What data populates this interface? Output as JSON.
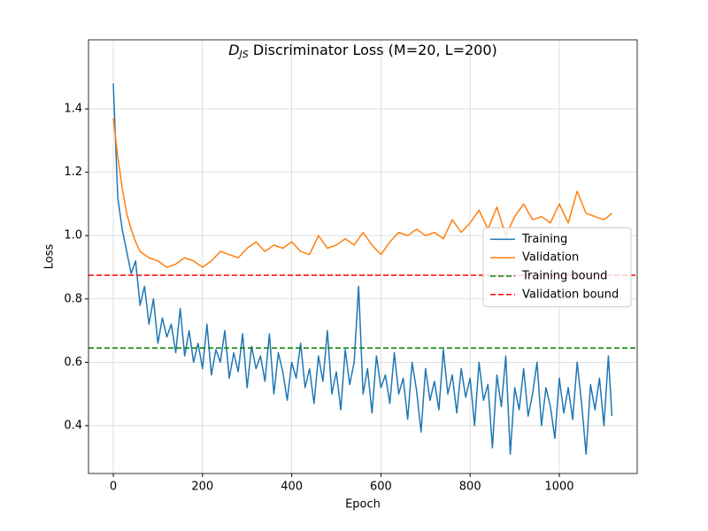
{
  "chart_data": {
    "type": "line",
    "title": {
      "symbol": "D",
      "subscript": "JS",
      "text": " Discriminator Loss (M=20, L=200)"
    },
    "x_label": "Epoch",
    "y_label": "Loss",
    "xlim": [
      -55.6,
      1174.6
    ],
    "ylim": [
      0.249,
      1.618
    ],
    "xticks": [
      0,
      200,
      400,
      600,
      800,
      1000
    ],
    "yticks": [
      0.4,
      0.6,
      0.8,
      {
        "value": 1,
        "label": "1.0"
      },
      1.2,
      1.4
    ],
    "grid": true,
    "legend": "center right",
    "series": [
      {
        "name": "Training",
        "color": "#1f77b4",
        "x": [
          0,
          10,
          20,
          30,
          40,
          50,
          60,
          70,
          80,
          90,
          100,
          110,
          120,
          130,
          140,
          150,
          160,
          170,
          180,
          190,
          200,
          210,
          220,
          230,
          240,
          250,
          260,
          270,
          280,
          290,
          300,
          310,
          320,
          330,
          340,
          350,
          360,
          370,
          380,
          390,
          400,
          410,
          420,
          430,
          440,
          450,
          460,
          470,
          480,
          490,
          500,
          510,
          520,
          530,
          540,
          550,
          560,
          570,
          580,
          590,
          600,
          610,
          620,
          630,
          640,
          650,
          660,
          670,
          680,
          690,
          700,
          710,
          720,
          730,
          740,
          750,
          760,
          770,
          780,
          790,
          800,
          810,
          820,
          830,
          840,
          850,
          860,
          870,
          880,
          890,
          900,
          910,
          920,
          930,
          940,
          950,
          960,
          970,
          980,
          990,
          1000,
          1010,
          1020,
          1030,
          1040,
          1050,
          1060,
          1070,
          1080,
          1090,
          1100,
          1110,
          1118
        ],
        "values": [
          1.48,
          1.12,
          1.02,
          0.95,
          0.88,
          0.92,
          0.78,
          0.84,
          0.72,
          0.8,
          0.66,
          0.74,
          0.68,
          0.72,
          0.63,
          0.77,
          0.62,
          0.7,
          0.6,
          0.66,
          0.58,
          0.72,
          0.56,
          0.64,
          0.6,
          0.7,
          0.55,
          0.63,
          0.57,
          0.69,
          0.52,
          0.65,
          0.58,
          0.62,
          0.54,
          0.69,
          0.5,
          0.63,
          0.57,
          0.48,
          0.6,
          0.55,
          0.66,
          0.52,
          0.58,
          0.47,
          0.62,
          0.54,
          0.7,
          0.5,
          0.57,
          0.45,
          0.64,
          0.53,
          0.6,
          0.84,
          0.5,
          0.58,
          0.44,
          0.62,
          0.52,
          0.56,
          0.47,
          0.63,
          0.5,
          0.55,
          0.42,
          0.6,
          0.51,
          0.38,
          0.58,
          0.48,
          0.54,
          0.45,
          0.64,
          0.5,
          0.56,
          0.44,
          0.58,
          0.49,
          0.55,
          0.4,
          0.6,
          0.48,
          0.53,
          0.33,
          0.56,
          0.46,
          0.62,
          0.31,
          0.52,
          0.45,
          0.58,
          0.43,
          0.5,
          0.6,
          0.4,
          0.52,
          0.46,
          0.36,
          0.55,
          0.44,
          0.52,
          0.42,
          0.6,
          0.47,
          0.31,
          0.53,
          0.45,
          0.55,
          0.4,
          0.62,
          0.43
        ]
      },
      {
        "name": "Validation",
        "color": "#ff7f0e",
        "x": [
          0,
          10,
          20,
          30,
          40,
          50,
          60,
          80,
          100,
          120,
          140,
          160,
          180,
          200,
          220,
          240,
          260,
          280,
          300,
          320,
          340,
          360,
          380,
          400,
          420,
          440,
          460,
          480,
          500,
          520,
          540,
          560,
          580,
          600,
          620,
          640,
          660,
          680,
          700,
          720,
          740,
          760,
          780,
          800,
          820,
          840,
          860,
          880,
          900,
          920,
          940,
          960,
          980,
          1000,
          1020,
          1040,
          1060,
          1080,
          1100,
          1118
        ],
        "values": [
          1.37,
          1.25,
          1.15,
          1.07,
          1.02,
          0.98,
          0.95,
          0.93,
          0.92,
          0.9,
          0.91,
          0.93,
          0.92,
          0.9,
          0.92,
          0.95,
          0.94,
          0.93,
          0.96,
          0.98,
          0.95,
          0.97,
          0.96,
          0.98,
          0.95,
          0.94,
          1.0,
          0.96,
          0.97,
          0.99,
          0.97,
          1.01,
          0.97,
          0.94,
          0.98,
          1.01,
          1.0,
          1.02,
          1.0,
          1.01,
          0.99,
          1.05,
          1.01,
          1.04,
          1.08,
          1.02,
          1.09,
          1.0,
          1.06,
          1.1,
          1.05,
          1.06,
          1.04,
          1.1,
          1.04,
          1.14,
          1.07,
          1.06,
          1.05,
          1.07
        ]
      }
    ],
    "hlines": [
      {
        "name": "Training bound",
        "color": "green",
        "value": 0.645
      },
      {
        "name": "Validation bound",
        "color": "red",
        "value": 0.875
      }
    ]
  }
}
